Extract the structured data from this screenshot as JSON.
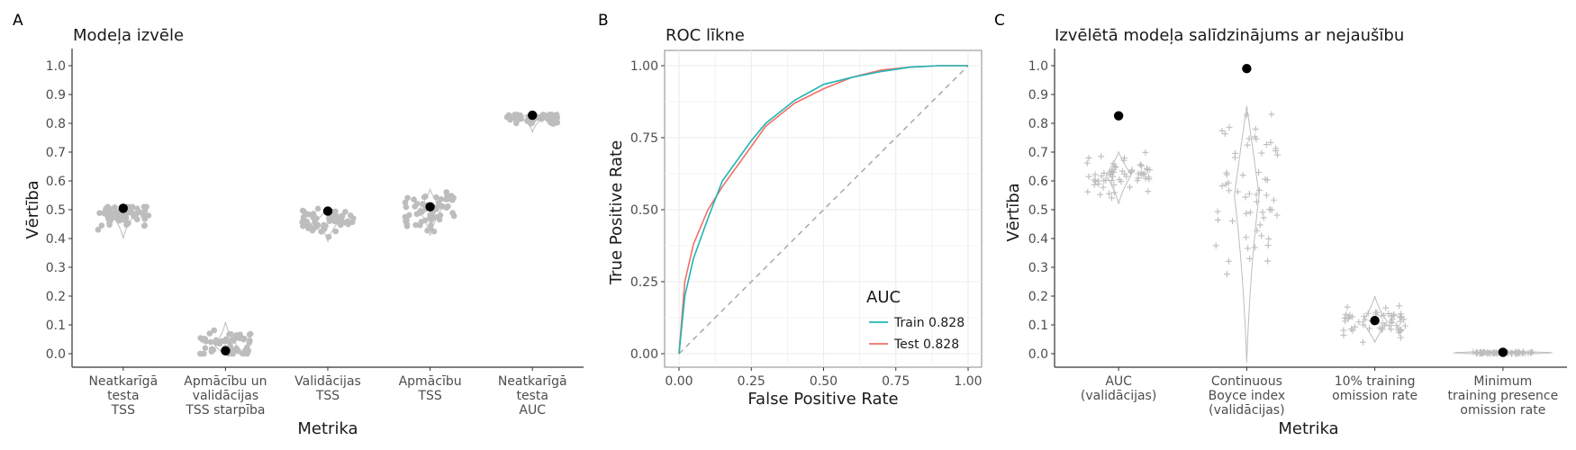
{
  "panels": {
    "A": {
      "label": "A",
      "title": "Modeļa izvēle",
      "ylabel": "Vērtība",
      "xlabel": "Metrika",
      "yticks": [
        "0.0",
        "0.1",
        "0.2",
        "0.3",
        "0.4",
        "0.5",
        "0.6",
        "0.7",
        "0.8",
        "0.9",
        "1.0"
      ],
      "categories": [
        [
          "Neatkarīgā",
          "testa",
          "TSS"
        ],
        [
          "Apmācību un",
          "validācijas",
          "TSS starpība"
        ],
        [
          "Validācijas",
          "TSS"
        ],
        [
          "Apmācību",
          "TSS"
        ],
        [
          "Neatkarīgā",
          "testa",
          "AUC"
        ]
      ]
    },
    "B": {
      "label": "B",
      "title": "ROC līkne",
      "ylabel": "True Positive Rate",
      "xlabel": "False Positive Rate",
      "xticks": [
        "0.00",
        "0.25",
        "0.50",
        "0.75",
        "1.00"
      ],
      "yticks": [
        "0.00",
        "0.25",
        "0.50",
        "0.75",
        "1.00"
      ],
      "legend_title": "AUC",
      "legend": [
        "Train 0.828",
        "Test 0.828"
      ]
    },
    "C": {
      "label": "C",
      "title": "Izvēlētā modeļa salīdzinājums ar nejaušību",
      "ylabel": "Vērtība",
      "xlabel": "Metrika",
      "yticks": [
        "0.0",
        "0.1",
        "0.2",
        "0.3",
        "0.4",
        "0.5",
        "0.6",
        "0.7",
        "0.8",
        "0.9",
        "1.0"
      ],
      "categories": [
        [
          "AUC",
          "(validācijas)"
        ],
        [
          "Continuous",
          "Boyce index",
          "(validācijas)"
        ],
        [
          "10% training",
          "omission rate"
        ],
        [
          "Minimum",
          "training presence",
          "omission rate"
        ]
      ]
    }
  },
  "colors": {
    "points": "#bdbdbd",
    "highlight": "#000000",
    "train": "#1fb5b5",
    "test": "#f07167",
    "diag": "#a8a8a8",
    "grid": "#ebebeb"
  },
  "chart_data": [
    {
      "type": "scatter",
      "title": "Modeļa izvēle",
      "xlabel": "Metrika",
      "ylabel": "Vērtība",
      "ylim": [
        0,
        1
      ],
      "categories": [
        "Neatkarīgā testa TSS",
        "Apmācību un validācijas TSS starpība",
        "Validācijas TSS",
        "Apmācību TSS",
        "Neatkarīgā testa AUC"
      ],
      "distribution": [
        {
          "center": 0.48,
          "min": 0.4,
          "max": 0.51
        },
        {
          "center": 0.03,
          "min": 0.0,
          "max": 0.11
        },
        {
          "center": 0.46,
          "min": 0.39,
          "max": 0.51
        },
        {
          "center": 0.5,
          "min": 0.41,
          "max": 0.57
        },
        {
          "center": 0.82,
          "min": 0.77,
          "max": 0.83
        }
      ],
      "selected_values": [
        0.505,
        0.01,
        0.495,
        0.51,
        0.828
      ],
      "grid": false
    },
    {
      "type": "line",
      "title": "ROC līkne",
      "xlabel": "False Positive Rate",
      "ylabel": "True Positive Rate",
      "xlim": [
        0,
        1
      ],
      "ylim": [
        0,
        1
      ],
      "series": [
        {
          "name": "Train 0.828",
          "x": [
            0,
            0.02,
            0.05,
            0.1,
            0.15,
            0.2,
            0.25,
            0.3,
            0.4,
            0.5,
            0.6,
            0.7,
            0.8,
            0.9,
            1.0
          ],
          "y": [
            0,
            0.2,
            0.33,
            0.47,
            0.6,
            0.67,
            0.74,
            0.8,
            0.88,
            0.935,
            0.96,
            0.98,
            0.995,
            1.0,
            1.0
          ]
        },
        {
          "name": "Test 0.828",
          "x": [
            0,
            0.02,
            0.05,
            0.1,
            0.15,
            0.2,
            0.25,
            0.3,
            0.4,
            0.5,
            0.6,
            0.7,
            0.8,
            0.9,
            1.0
          ],
          "y": [
            0,
            0.25,
            0.38,
            0.5,
            0.58,
            0.65,
            0.72,
            0.79,
            0.87,
            0.92,
            0.96,
            0.985,
            0.995,
            1.0,
            1.0
          ]
        },
        {
          "name": "",
          "x": [
            0,
            1
          ],
          "y": [
            0,
            1
          ]
        }
      ],
      "grid": true,
      "legend_position": "bottom-right"
    },
    {
      "type": "scatter",
      "title": "Izvēlētā modeļa salīdzinājums ar nejaušību",
      "xlabel": "Metrika",
      "ylabel": "Vērtība",
      "ylim": [
        0,
        1
      ],
      "categories": [
        "AUC (validācijas)",
        "Continuous Boyce index (validācijas)",
        "10% training omission rate",
        "Minimum training presence omission rate"
      ],
      "distribution": [
        {
          "center": 0.62,
          "min": 0.52,
          "max": 0.7
        },
        {
          "center": 0.55,
          "min": -0.03,
          "max": 0.86
        },
        {
          "center": 0.11,
          "min": 0.04,
          "max": 0.2
        },
        {
          "center": 0.003,
          "min": 0.0,
          "max": 0.01
        }
      ],
      "selected_values": [
        0.826,
        0.99,
        0.115,
        0.005
      ],
      "grid": false
    }
  ]
}
